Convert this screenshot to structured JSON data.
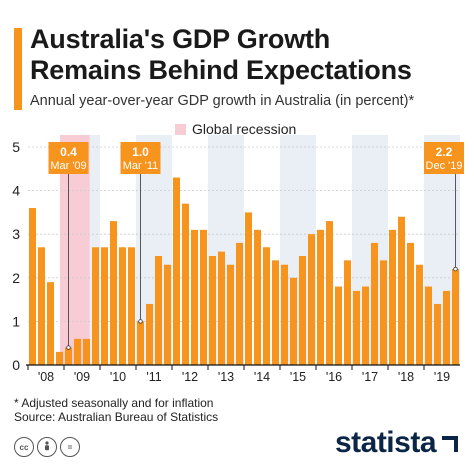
{
  "header": {
    "title_line1": "Australia's GDP Growth",
    "title_line2": "Remains Behind Expectations",
    "subtitle": "Annual year-over-year GDP growth in Australia (in percent)*",
    "legend_recession": "Global recession"
  },
  "footer": {
    "footnote": "* Adjusted seasonally and for inflation",
    "source": "Source: Australian Bureau of Statistics",
    "brand": "statista",
    "icons": [
      "creative-commons-icon",
      "attribution-icon",
      "no-derivatives-icon"
    ]
  },
  "chart_data": {
    "type": "bar",
    "x_axis": "quarters, Q1 2008 to Q4 2019",
    "y_ticks": [
      "0",
      "1",
      "2",
      "3",
      "4",
      "5"
    ],
    "ylim": [
      0,
      5
    ],
    "year_labels": [
      "'08",
      "'09",
      "'10",
      "'11",
      "'12",
      "'13",
      "'14",
      "'15",
      "'16",
      "'17",
      "'18",
      "'19"
    ],
    "values": [
      3.6,
      2.7,
      1.9,
      0.3,
      0.4,
      0.6,
      0.6,
      2.7,
      2.7,
      3.3,
      2.7,
      2.7,
      1.0,
      1.4,
      2.5,
      2.3,
      4.3,
      3.7,
      3.1,
      3.1,
      2.5,
      2.6,
      2.3,
      2.8,
      3.5,
      3.1,
      2.7,
      2.4,
      2.3,
      2.0,
      2.5,
      3.0,
      3.1,
      3.3,
      1.8,
      2.4,
      1.7,
      1.8,
      2.8,
      2.4,
      3.1,
      3.4,
      2.8,
      2.3,
      1.8,
      1.4,
      1.7,
      2.2
    ],
    "recession_quarters": [
      4,
      5,
      6
    ],
    "callouts": [
      {
        "value": "0.4",
        "date": "Mar '09",
        "index": 4
      },
      {
        "value": "1.0",
        "date": "Mar '11",
        "index": 12
      },
      {
        "value": "2.2",
        "date": "Dec '19",
        "index": 47
      }
    ],
    "colors": {
      "bar": "#f7941d",
      "recession": "#f8ccd4",
      "alt_band": "#eaeef5",
      "callout": "#f7941d",
      "axis": "#111111",
      "grid": "#cccccc"
    }
  }
}
